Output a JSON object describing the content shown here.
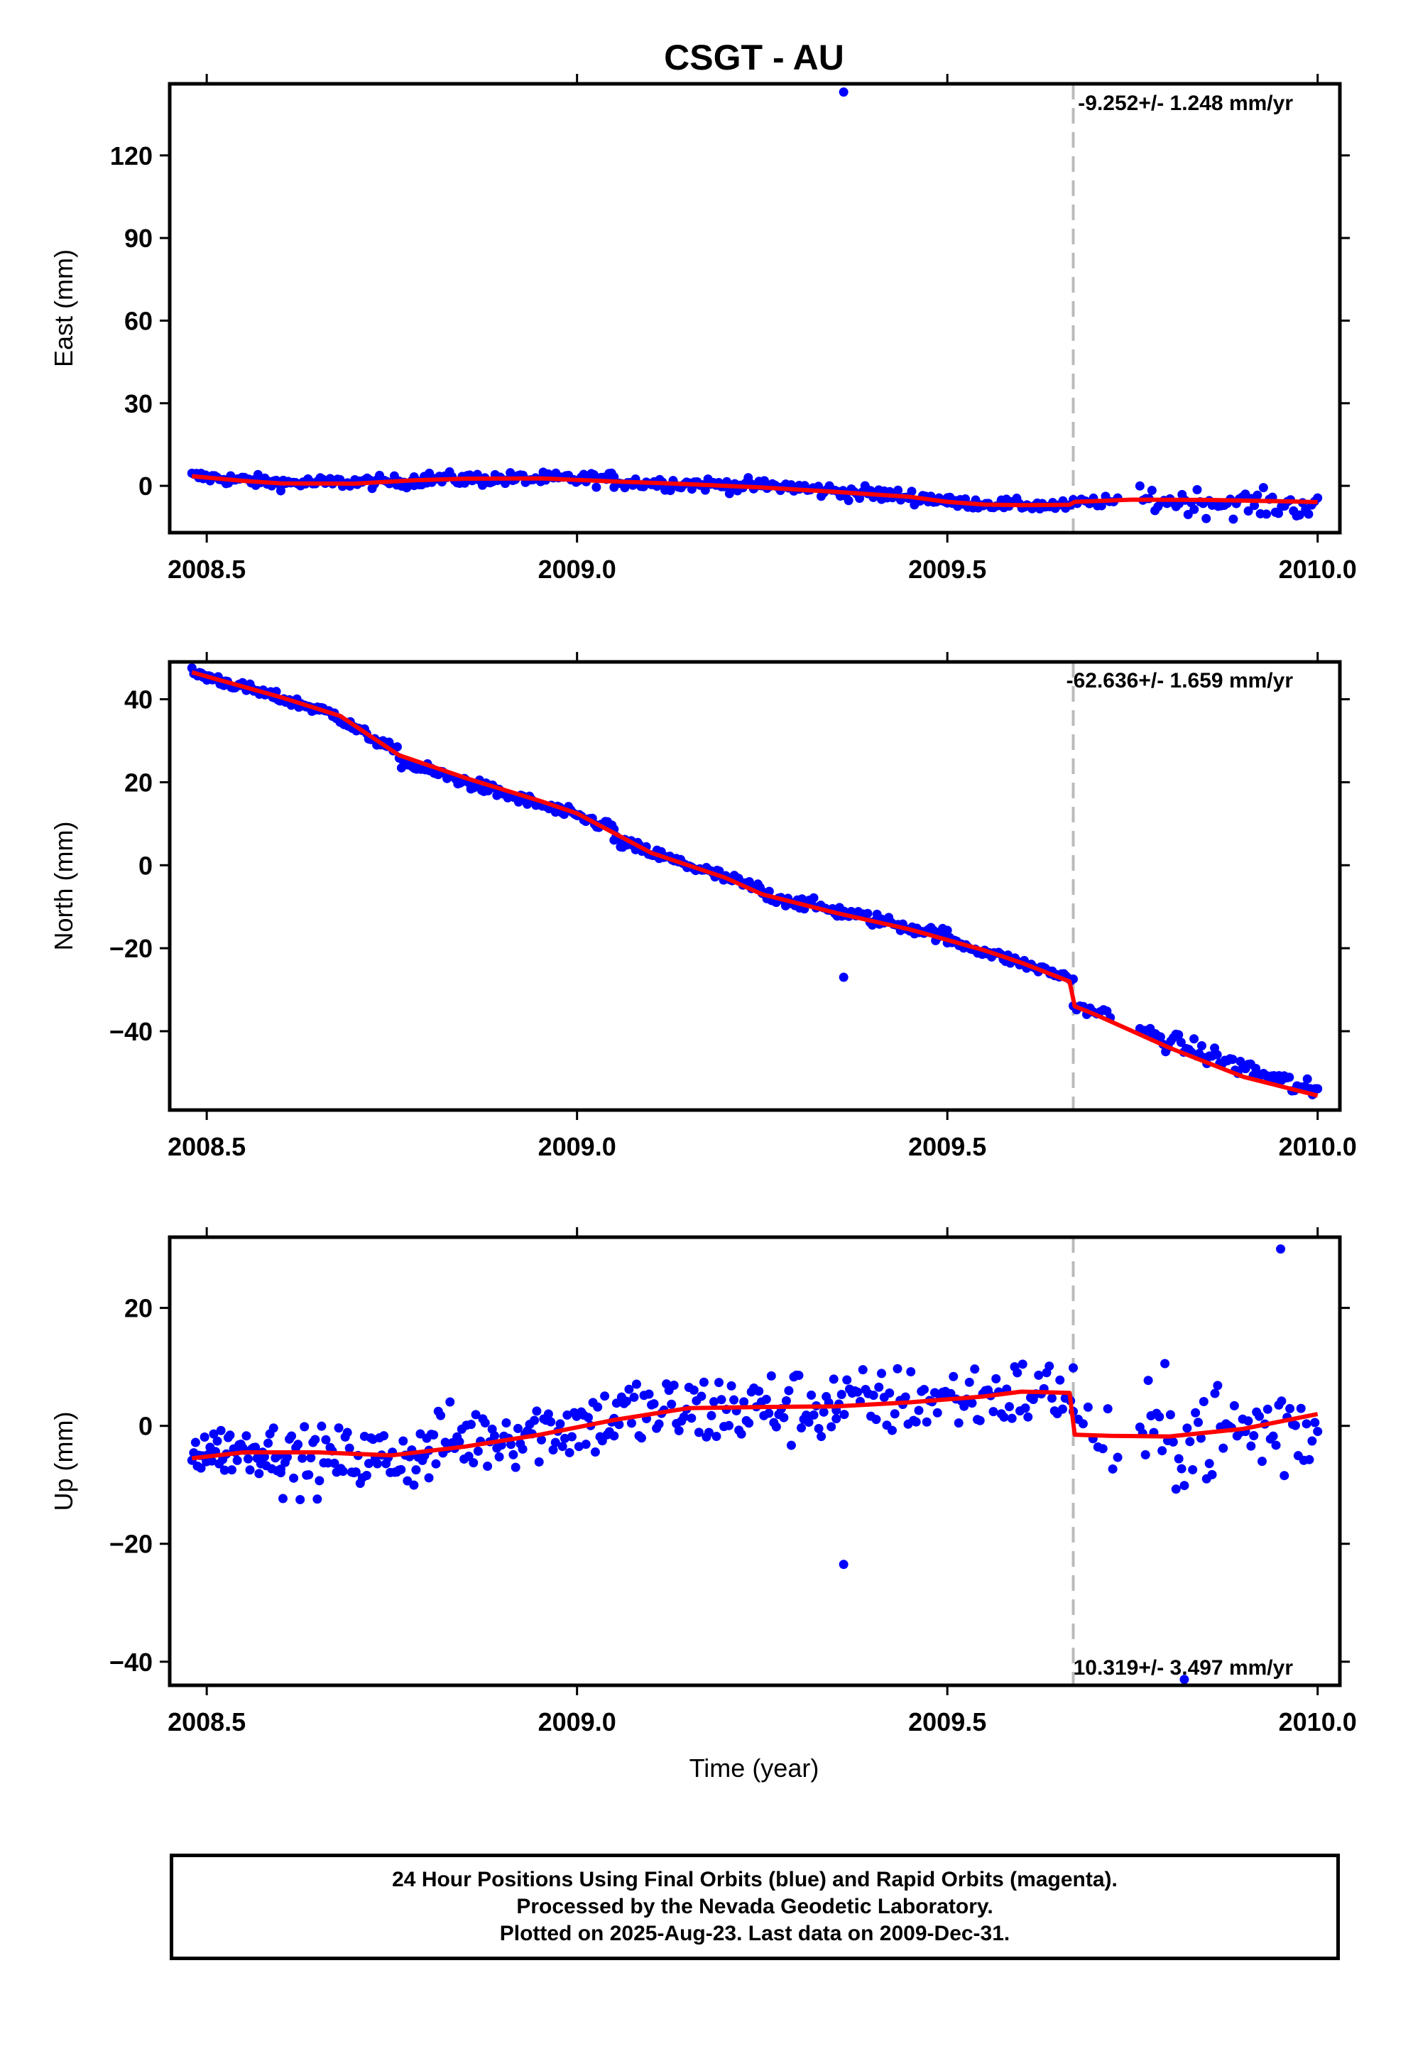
{
  "title": "CSGT - AU",
  "xlabel": "Time (year)",
  "colors": {
    "final_orbits": "#0000ff",
    "rapid_orbits": "#ff00ff",
    "model": "#ff0000",
    "break_line": "#bbbbbb"
  },
  "footer": {
    "line1": "24 Hour Positions Using Final Orbits (blue) and Rapid Orbits (magenta).",
    "line2": "Processed by the Nevada Geodetic Laboratory.",
    "line3": "Plotted on 2025-Aug-23. Last data on 2009-Dec-31."
  },
  "chart_data": [
    {
      "type": "scatter",
      "component": "east",
      "ylabel": "East (mm)",
      "rate_label": "-9.252+/- 1.248 mm/yr",
      "xlim": [
        2008.45,
        2010.03
      ],
      "ylim": [
        -17,
        146
      ],
      "yticks": [
        0,
        30,
        60,
        90,
        120
      ],
      "xticks": [
        "2008.5",
        "2009.0",
        "2009.5",
        "2010.0"
      ],
      "break_epoch": 2009.67,
      "model_line": {
        "x": [
          2008.48,
          2008.55,
          2008.6,
          2008.7,
          2008.78,
          2008.85,
          2008.95,
          2009.05,
          2009.15,
          2009.25,
          2009.35,
          2009.45,
          2009.5,
          2009.55,
          2009.6,
          2009.665,
          2009.672,
          2009.75,
          2009.85,
          2009.95,
          2010.0
        ],
        "y": [
          3.5,
          1.8,
          0.9,
          0.8,
          2.0,
          2.6,
          2.7,
          1.6,
          0.6,
          -0.6,
          -2.2,
          -4.0,
          -5.8,
          -6.8,
          -7.0,
          -6.9,
          -5.8,
          -5.0,
          -5.1,
          -5.6,
          -5.9
        ]
      },
      "outliers": [
        {
          "x": 2009.36,
          "y": 143
        }
      ],
      "trend_segments": [
        {
          "x0": 2008.48,
          "x1": 2008.6,
          "y0": 3.5,
          "y1": 1.0,
          "noise": 1.8,
          "n": 40
        },
        {
          "x0": 2008.6,
          "x1": 2008.78,
          "y0": 1.0,
          "y1": 1.5,
          "noise": 1.8,
          "n": 55
        },
        {
          "x0": 2008.78,
          "x1": 2009.05,
          "y0": 2.5,
          "y1": 2.5,
          "noise": 2.0,
          "n": 80
        },
        {
          "x0": 2009.05,
          "x1": 2009.3,
          "y0": 1.5,
          "y1": -0.5,
          "noise": 2.0,
          "n": 70
        },
        {
          "x0": 2009.3,
          "x1": 2009.5,
          "y0": -1.0,
          "y1": -5.0,
          "noise": 2.2,
          "n": 55
        },
        {
          "x0": 2009.5,
          "x1": 2009.67,
          "y0": -6.0,
          "y1": -7.5,
          "noise": 1.6,
          "n": 50
        },
        {
          "x0": 2009.67,
          "x1": 2009.73,
          "y0": -6.0,
          "y1": -5.5,
          "noise": 1.6,
          "n": 12
        },
        {
          "x0": 2009.76,
          "x1": 2010.0,
          "y0": -5.0,
          "y1": -7.5,
          "noise": 4.0,
          "n": 60
        }
      ]
    },
    {
      "type": "scatter",
      "component": "north",
      "ylabel": "North (mm)",
      "rate_label": "-62.636+/- 1.659 mm/yr",
      "xlim": [
        2008.45,
        2010.03
      ],
      "ylim": [
        -59,
        49
      ],
      "yticks": [
        -40,
        -20,
        0,
        20,
        40
      ],
      "xticks": [
        "2008.5",
        "2009.0",
        "2009.5",
        "2010.0"
      ],
      "break_epoch": 2009.67,
      "model_line": {
        "x": [
          2008.48,
          2008.6,
          2008.68,
          2008.76,
          2008.85,
          2008.95,
          2009.0,
          2009.1,
          2009.2,
          2009.25,
          2009.35,
          2009.45,
          2009.55,
          2009.6,
          2009.665,
          2009.672,
          2009.7,
          2009.8,
          2009.9,
          2010.0
        ],
        "y": [
          46.5,
          40.5,
          36.0,
          26.5,
          21.0,
          15.5,
          12.5,
          3.0,
          -3.0,
          -7.0,
          -11.5,
          -15.5,
          -20.5,
          -23.5,
          -28.0,
          -34.0,
          -36.0,
          -44.0,
          -51.0,
          -55.5
        ]
      },
      "outliers": [
        {
          "x": 2009.36,
          "y": -27
        }
      ],
      "trend_segments": [
        {
          "x0": 2008.48,
          "x1": 2008.68,
          "y0": 46.5,
          "y1": 36.0,
          "noise": 1.0,
          "n": 80
        },
        {
          "x0": 2008.68,
          "x1": 2008.76,
          "y0": 35.0,
          "y1": 27.0,
          "noise": 1.0,
          "n": 30
        },
        {
          "x0": 2008.76,
          "x1": 2009.05,
          "y0": 25.0,
          "y1": 9.0,
          "noise": 1.2,
          "n": 100
        },
        {
          "x0": 2009.05,
          "x1": 2009.25,
          "y0": 6.0,
          "y1": -6.0,
          "noise": 1.2,
          "n": 70
        },
        {
          "x0": 2009.25,
          "x1": 2009.5,
          "y0": -7.0,
          "y1": -17.0,
          "noise": 1.3,
          "n": 80
        },
        {
          "x0": 2009.5,
          "x1": 2009.67,
          "y0": -18.0,
          "y1": -27.5,
          "noise": 1.0,
          "n": 55
        },
        {
          "x0": 2009.67,
          "x1": 2009.72,
          "y0": -34.0,
          "y1": -36.0,
          "noise": 1.0,
          "n": 12
        },
        {
          "x0": 2009.76,
          "x1": 2010.0,
          "y0": -40.0,
          "y1": -55.0,
          "noise": 2.0,
          "n": 70
        }
      ]
    },
    {
      "type": "scatter",
      "component": "up",
      "ylabel": "Up (mm)",
      "rate_label": "10.319+/- 3.497 mm/yr",
      "xlim": [
        2008.45,
        2010.03
      ],
      "ylim": [
        -44,
        32
      ],
      "yticks": [
        -40,
        -20,
        0,
        20
      ],
      "xticks": [
        "2008.5",
        "2009.0",
        "2009.5",
        "2010.0"
      ],
      "break_epoch": 2009.67,
      "model_line": {
        "x": [
          2008.48,
          2008.55,
          2008.65,
          2008.75,
          2008.85,
          2008.95,
          2009.05,
          2009.15,
          2009.25,
          2009.35,
          2009.45,
          2009.55,
          2009.6,
          2009.665,
          2009.672,
          2009.72,
          2009.8,
          2009.9,
          2010.0
        ],
        "y": [
          -5.5,
          -4.5,
          -4.5,
          -5.0,
          -3.5,
          -1.5,
          1.0,
          3.0,
          3.2,
          3.3,
          4.0,
          5.0,
          5.8,
          5.6,
          -1.5,
          -1.7,
          -1.8,
          -0.5,
          2.0
        ]
      },
      "outliers": [
        {
          "x": 2009.36,
          "y": -23.5
        },
        {
          "x": 2009.95,
          "y": 30
        },
        {
          "x": 2009.82,
          "y": -43
        }
      ],
      "trend_segments": [
        {
          "x0": 2008.48,
          "x1": 2008.6,
          "y0": -4.0,
          "y1": -4.0,
          "noise": 3.5,
          "n": 50
        },
        {
          "x0": 2008.6,
          "x1": 2008.8,
          "y0": -6.0,
          "y1": -5.0,
          "noise": 4.5,
          "n": 70
        },
        {
          "x0": 2008.8,
          "x1": 2009.05,
          "y0": -3.0,
          "y1": 1.0,
          "noise": 5.0,
          "n": 80
        },
        {
          "x0": 2009.05,
          "x1": 2009.35,
          "y0": 2.0,
          "y1": 3.5,
          "noise": 5.5,
          "n": 90
        },
        {
          "x0": 2009.35,
          "x1": 2009.67,
          "y0": 3.5,
          "y1": 6.0,
          "noise": 5.0,
          "n": 90
        },
        {
          "x0": 2009.67,
          "x1": 2009.73,
          "y0": 2.0,
          "y1": -4.0,
          "noise": 5.0,
          "n": 10
        },
        {
          "x0": 2009.76,
          "x1": 2010.0,
          "y0": -2.0,
          "y1": 0.0,
          "noise": 8.0,
          "n": 65
        }
      ]
    }
  ]
}
